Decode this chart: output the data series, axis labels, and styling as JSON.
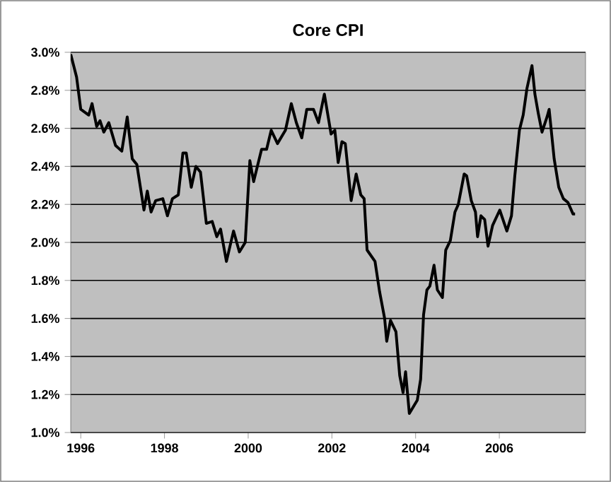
{
  "chart_data": {
    "type": "line",
    "title": "Core CPI",
    "x": [
      1995.76,
      1995.9,
      1996.0,
      1996.19,
      1996.27,
      1996.38,
      1996.46,
      1996.55,
      1996.67,
      1996.75,
      1996.83,
      1996.98,
      1997.11,
      1997.23,
      1997.34,
      1997.51,
      1997.59,
      1997.68,
      1997.79,
      1997.96,
      1998.07,
      1998.19,
      1998.33,
      1998.44,
      1998.52,
      1998.64,
      1998.75,
      1998.86,
      1999.0,
      1999.14,
      1999.25,
      1999.34,
      1999.48,
      1999.65,
      1999.79,
      1999.93,
      2000.04,
      2000.13,
      2000.32,
      2000.44,
      2000.55,
      2000.7,
      2000.89,
      2001.03,
      2001.15,
      2001.28,
      2001.4,
      2001.56,
      2001.68,
      2001.82,
      2001.98,
      2002.07,
      2002.15,
      2002.24,
      2002.32,
      2002.46,
      2002.58,
      2002.69,
      2002.77,
      2002.84,
      2003.03,
      2003.14,
      2003.26,
      2003.31,
      2003.4,
      2003.53,
      2003.62,
      2003.7,
      2003.76,
      2003.85,
      2004.04,
      2004.12,
      2004.19,
      2004.27,
      2004.34,
      2004.44,
      2004.52,
      2004.64,
      2004.72,
      2004.83,
      2004.94,
      2005.02,
      2005.16,
      2005.22,
      2005.33,
      2005.43,
      2005.48,
      2005.56,
      2005.65,
      2005.73,
      2005.84,
      2006.01,
      2006.18,
      2006.29,
      2006.37,
      2006.48,
      2006.57,
      2006.66,
      2006.78,
      2006.85,
      2006.93,
      2007.02,
      2007.14,
      2007.19,
      2007.31,
      2007.42,
      2007.53,
      2007.64,
      2007.76,
      2007.81
    ],
    "series": [
      {
        "color": "#000000",
        "values": [
          2.99,
          2.87,
          2.7,
          2.67,
          2.73,
          2.61,
          2.64,
          2.58,
          2.63,
          2.57,
          2.51,
          2.48,
          2.66,
          2.44,
          2.41,
          2.17,
          2.27,
          2.16,
          2.22,
          2.23,
          2.14,
          2.23,
          2.25,
          2.47,
          2.47,
          2.29,
          2.4,
          2.37,
          2.1,
          2.11,
          2.03,
          2.07,
          1.9,
          2.06,
          1.95,
          2.0,
          2.43,
          2.32,
          2.49,
          2.49,
          2.59,
          2.52,
          2.59,
          2.73,
          2.63,
          2.55,
          2.7,
          2.7,
          2.63,
          2.78,
          2.57,
          2.59,
          2.42,
          2.53,
          2.52,
          2.22,
          2.36,
          2.25,
          2.23,
          1.96,
          1.9,
          1.74,
          1.6,
          1.48,
          1.59,
          1.53,
          1.3,
          1.21,
          1.32,
          1.1,
          1.17,
          1.28,
          1.62,
          1.75,
          1.77,
          1.88,
          1.75,
          1.71,
          1.96,
          2.01,
          2.16,
          2.2,
          2.36,
          2.35,
          2.22,
          2.16,
          2.03,
          2.14,
          2.12,
          1.98,
          2.09,
          2.17,
          2.06,
          2.14,
          2.35,
          2.59,
          2.67,
          2.81,
          2.93,
          2.78,
          2.68,
          2.58,
          2.66,
          2.7,
          2.44,
          2.29,
          2.23,
          2.21,
          2.15,
          2.15
        ]
      }
    ],
    "xlim": [
      1995.76,
      2008.06
    ],
    "ylim": [
      1.0,
      3.0
    ],
    "xticks": [
      1996,
      1998,
      2000,
      2002,
      2004,
      2006
    ],
    "yticks": [
      {
        "value": 1.0,
        "label": "1.0%"
      },
      {
        "value": 1.2,
        "label": "1.2%"
      },
      {
        "value": 1.4,
        "label": "1.4%"
      },
      {
        "value": 1.6,
        "label": "1.6%"
      },
      {
        "value": 1.8,
        "label": "1.8%"
      },
      {
        "value": 2.0,
        "label": "2.0%"
      },
      {
        "value": 2.2,
        "label": "2.2%"
      },
      {
        "value": 2.4,
        "label": "2.4%"
      },
      {
        "value": 2.6,
        "label": "2.6%"
      },
      {
        "value": 2.8,
        "label": "2.8%"
      },
      {
        "value": 3.0,
        "label": "3.0%"
      }
    ],
    "grid": "y",
    "marker": "none",
    "line_style": "solid"
  }
}
